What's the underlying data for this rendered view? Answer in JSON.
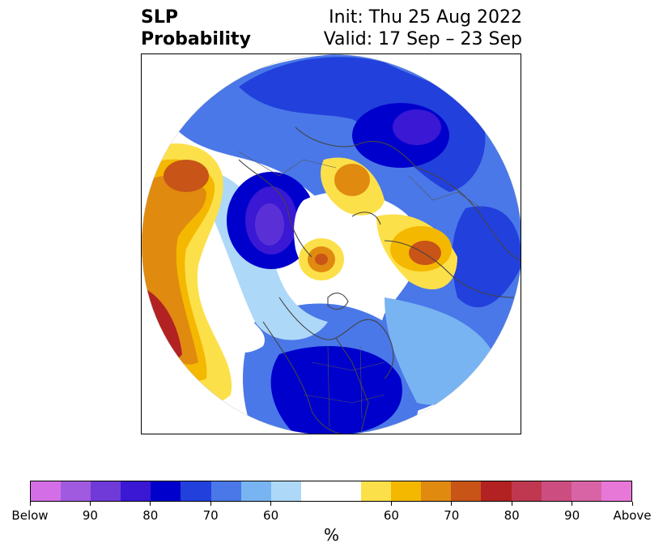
{
  "title": {
    "left_line1": "SLP",
    "left_line2": "Probability",
    "right_line1": "Init: Thu 25 Aug 2022",
    "right_line2": "Valid: 17 Sep – 23 Sep"
  },
  "colorbar": {
    "colors": [
      "#d36ee6",
      "#a05ae0",
      "#6f3ad8",
      "#3a18d4",
      "#0000cc",
      "#2240dc",
      "#4a78e8",
      "#78b4f2",
      "#aed8f8",
      "#ffffff",
      "#ffffff",
      "#fce04a",
      "#f4b800",
      "#e08a10",
      "#c85418",
      "#b22222",
      "#c03850",
      "#cc4e80",
      "#d864a6",
      "#e878d8"
    ],
    "tick_labels": [
      "Below",
      "90",
      "80",
      "70",
      "60",
      "60",
      "70",
      "80",
      "90",
      "Above"
    ],
    "unit": "%"
  },
  "map": {
    "projection": "north polar stereographic",
    "palette": {
      "deep_blue": "#0000cc",
      "blue": "#2240dc",
      "mid_blue": "#4a78e8",
      "light_blue": "#78b4f2",
      "pale_blue": "#aed8f8",
      "purple": "#5a30d6",
      "yellow": "#fce04a",
      "gold": "#f4b800",
      "orange": "#e08a10",
      "dark_orange": "#c85418",
      "red": "#b22222",
      "coast": "#444444"
    }
  }
}
